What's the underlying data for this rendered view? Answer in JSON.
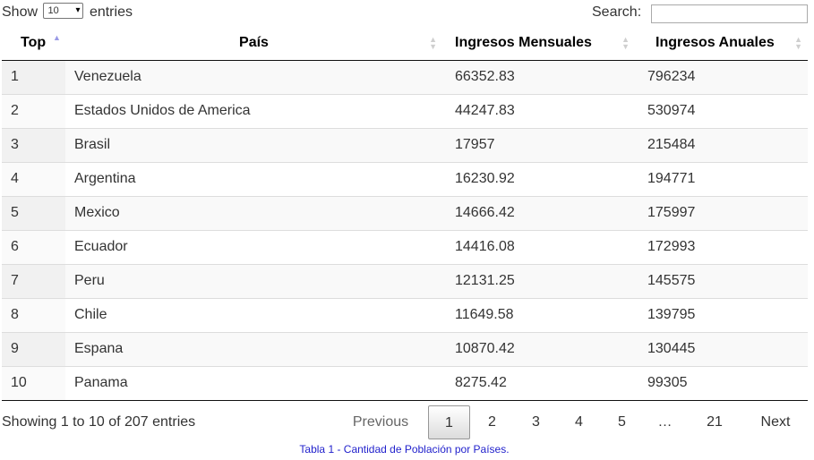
{
  "length": {
    "show_label": "Show",
    "entries_label": "entries",
    "selected": "10",
    "arrow": "▾"
  },
  "search": {
    "label": "Search:",
    "value": ""
  },
  "table": {
    "headers": [
      "Top",
      "País",
      "Ingresos Mensuales",
      "Ingresos Anuales"
    ],
    "rows": [
      [
        "1",
        "Venezuela",
        "66352.83",
        "796234"
      ],
      [
        "2",
        "Estados Unidos de America",
        "44247.83",
        "530974"
      ],
      [
        "3",
        "Brasil",
        "17957",
        "215484"
      ],
      [
        "4",
        "Argentina",
        "16230.92",
        "194771"
      ],
      [
        "5",
        "Mexico",
        "14666.42",
        "175997"
      ],
      [
        "6",
        "Ecuador",
        "14416.08",
        "172993"
      ],
      [
        "7",
        "Peru",
        "12131.25",
        "145575"
      ],
      [
        "8",
        "Chile",
        "11649.58",
        "139795"
      ],
      [
        "9",
        "Espana",
        "10870.42",
        "130445"
      ],
      [
        "10",
        "Panama",
        "8275.42",
        "99305"
      ]
    ]
  },
  "info": "Showing 1 to 10 of 207 entries",
  "pagination": {
    "previous": "Previous",
    "pages": [
      "1",
      "2",
      "3",
      "4",
      "5"
    ],
    "ellipsis": "…",
    "last": "21",
    "next": "Next",
    "current": "1"
  },
  "caption": "Tabla 1 - Cantidad de Población por Países.",
  "colors": {
    "caption": "#2222cc",
    "sort_active": "#9a9ae6"
  }
}
